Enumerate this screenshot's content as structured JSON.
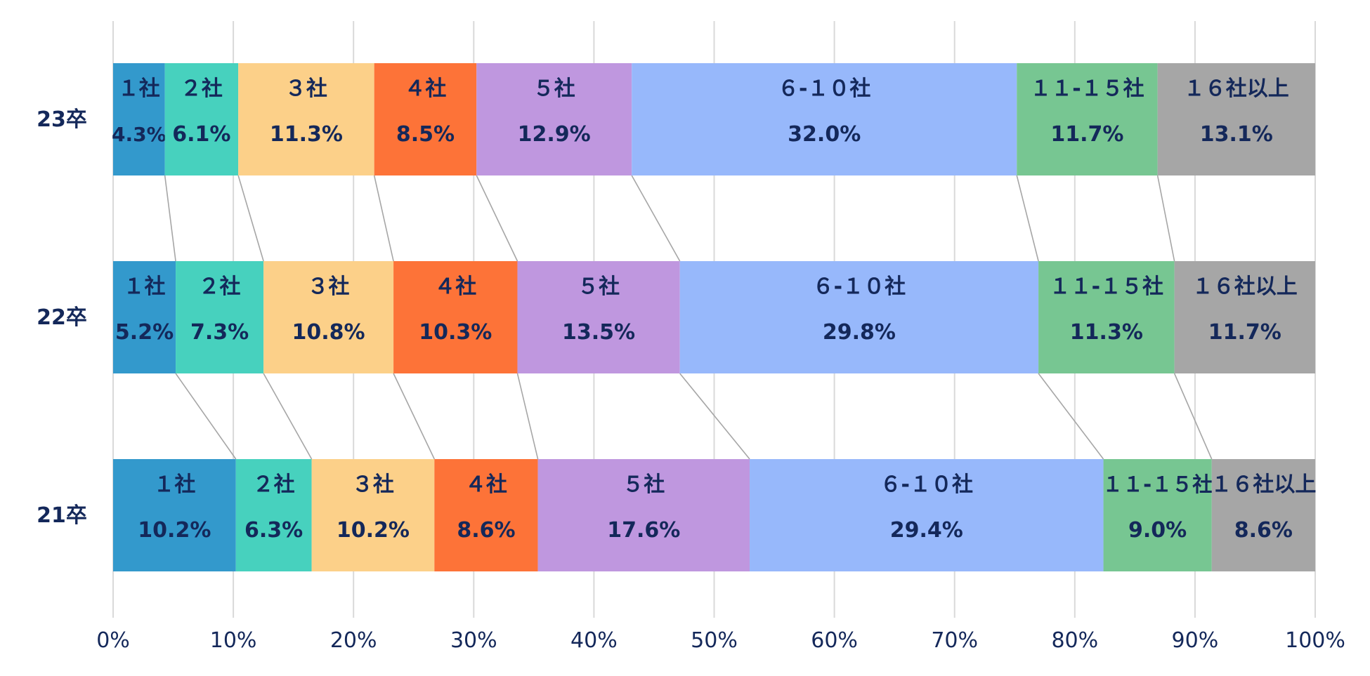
{
  "chart_data": {
    "type": "bar",
    "orientation": "horizontal",
    "stacked": "percent",
    "categories": [
      "23卒",
      "22卒",
      "21卒"
    ],
    "series": [
      {
        "name": "１社",
        "color": "#3399cc",
        "values": [
          4.3,
          5.2,
          10.2
        ],
        "labels": [
          "4.3%",
          "5.2%",
          "10.2%"
        ]
      },
      {
        "name": "２社",
        "color": "#47d1be",
        "values": [
          6.1,
          7.3,
          6.3
        ],
        "labels": [
          "6.1%",
          "7.3%",
          "6.3%"
        ]
      },
      {
        "name": "３社",
        "color": "#fcd089",
        "values": [
          11.3,
          10.8,
          10.2
        ],
        "labels": [
          "11.3%",
          "10.8%",
          "10.2%"
        ]
      },
      {
        "name": "４社",
        "color": "#fd7338",
        "values": [
          8.5,
          10.3,
          8.6
        ],
        "labels": [
          "8.5%",
          "10.3%",
          "8.6%"
        ]
      },
      {
        "name": "５社",
        "color": "#bf97df",
        "values": [
          12.9,
          13.5,
          17.6
        ],
        "labels": [
          "12.9%",
          "13.5%",
          "17.6%"
        ]
      },
      {
        "name": "６-１０社",
        "color": "#97b8fb",
        "values": [
          32.0,
          29.8,
          29.4
        ],
        "labels": [
          "32.0%",
          "29.8%",
          "29.4%"
        ]
      },
      {
        "name": "１１-１５社",
        "color": "#77c692",
        "values": [
          11.7,
          11.3,
          9.0
        ],
        "labels": [
          "11.7%",
          "11.3%",
          "9.0%"
        ]
      },
      {
        "name": "１６社以上",
        "color": "#a6a6a6",
        "values": [
          13.1,
          11.7,
          8.6
        ],
        "labels": [
          "13.1%",
          "11.7%",
          "8.6%"
        ]
      }
    ],
    "xlim": [
      0,
      100
    ],
    "xticks": [
      "0%",
      "10%",
      "20%",
      "30%",
      "40%",
      "50%",
      "60%",
      "70%",
      "80%",
      "90%",
      "100%"
    ],
    "title": "",
    "xlabel": "",
    "ylabel": "",
    "grid": true,
    "series_lines": true,
    "label_color": "#14285a"
  }
}
